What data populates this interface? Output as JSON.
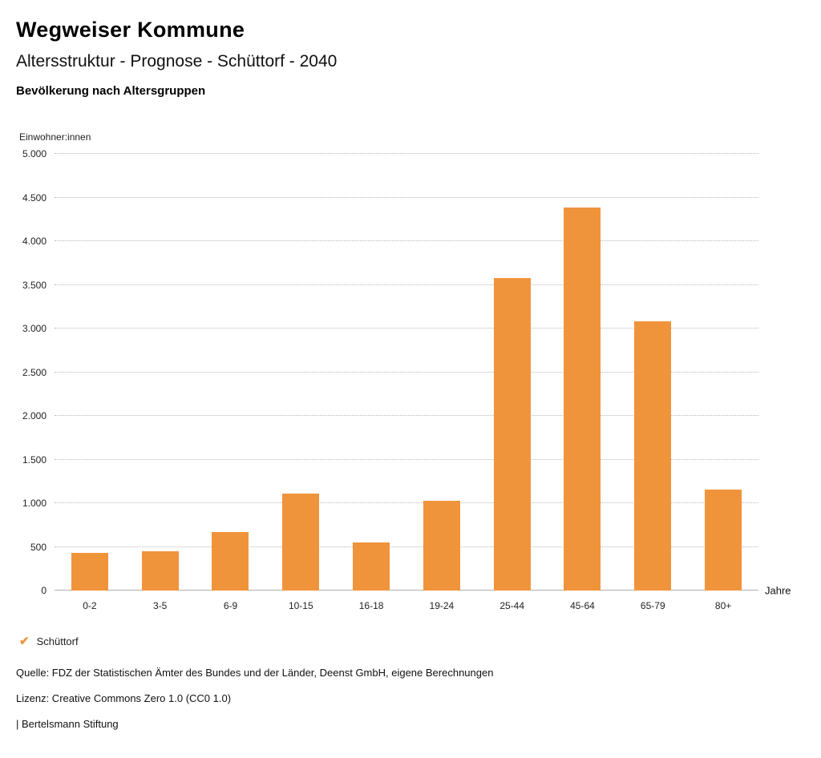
{
  "header": {
    "title": "Wegweiser Kommune",
    "subtitle": "Altersstruktur - Prognose - Schüttorf - 2040",
    "chart_heading": "Bevölkerung nach Altersgruppen"
  },
  "chart_data": {
    "type": "bar",
    "title": "Bevölkerung nach Altersgruppen",
    "ylabel": "Einwohner:innen",
    "xlabel": "Jahre",
    "categories": [
      "0-2",
      "3-5",
      "6-9",
      "10-15",
      "16-18",
      "19-24",
      "25-44",
      "45-64",
      "65-79",
      "80+"
    ],
    "values": [
      430,
      450,
      670,
      1110,
      555,
      1030,
      3575,
      4390,
      3080,
      1160
    ],
    "ylim": [
      0,
      5000
    ],
    "yticks": [
      {
        "value": 0,
        "label": "0"
      },
      {
        "value": 500,
        "label": "500"
      },
      {
        "value": 1000,
        "label": "1.000"
      },
      {
        "value": 1500,
        "label": "1.500"
      },
      {
        "value": 2000,
        "label": "2.000"
      },
      {
        "value": 2500,
        "label": "2.500"
      },
      {
        "value": 3000,
        "label": "3.000"
      },
      {
        "value": 3500,
        "label": "3.500"
      },
      {
        "value": 4000,
        "label": "4.000"
      },
      {
        "value": 4500,
        "label": "4.500"
      },
      {
        "value": 5000,
        "label": "5.000"
      }
    ],
    "bar_color": "#f0943c",
    "grid": true,
    "legend_position": "bottom",
    "series_name": "Schüttorf"
  },
  "legend": {
    "check_icon": "✔",
    "label": "Schüttorf",
    "color": "#f0943c"
  },
  "footer": {
    "source": "Quelle: FDZ der Statistischen Ämter des Bundes und der Länder, Deenst GmbH, eigene Berechnungen",
    "license": "Lizenz: Creative Commons Zero 1.0 (CC0 1.0)",
    "brand": "| Bertelsmann Stiftung"
  }
}
